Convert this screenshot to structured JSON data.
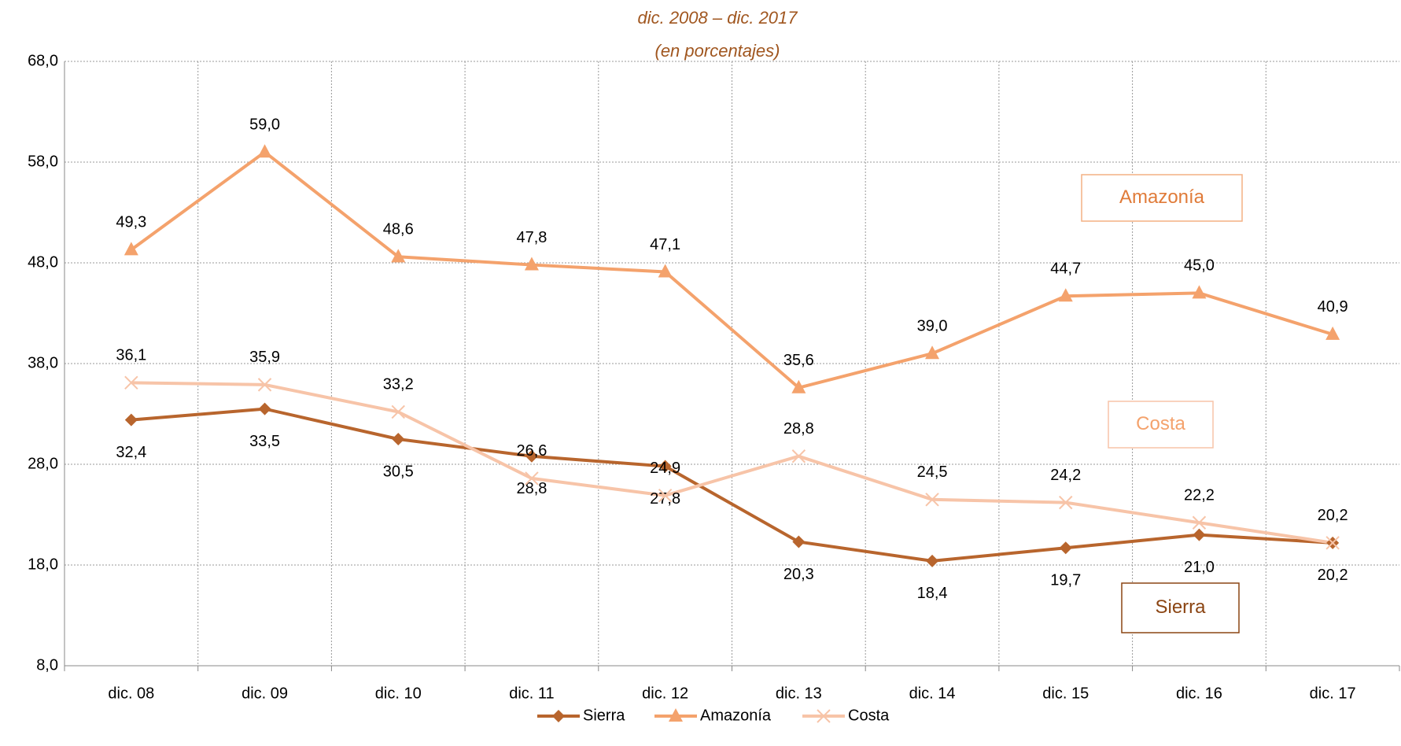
{
  "chart_data": {
    "type": "line",
    "title": "dic. 2008 – dic. 2017",
    "subtitle": "(en porcentajes)",
    "categories": [
      "dic. 08",
      "dic. 09",
      "dic. 10",
      "dic. 11",
      "dic. 12",
      "dic. 13",
      "dic. 14",
      "dic. 15",
      "dic. 16",
      "dic. 17"
    ],
    "series": [
      {
        "name": "Sierra",
        "color": "#b8652d",
        "marker": "diamond",
        "values": [
          32.4,
          33.5,
          30.5,
          28.8,
          27.8,
          20.3,
          18.4,
          19.7,
          21.0,
          20.2
        ],
        "value_labels": [
          "32,4",
          "33,5",
          "30,5",
          "28,8",
          "27,8",
          "20,3",
          "18,4",
          "19,7",
          "21,0",
          "20,2"
        ]
      },
      {
        "name": "Amazonía",
        "color": "#f4a26c",
        "marker": "triangle",
        "values": [
          49.3,
          59.0,
          48.6,
          47.8,
          47.1,
          35.6,
          39.0,
          44.7,
          45.0,
          40.9
        ],
        "value_labels": [
          "49,3",
          "59,0",
          "48,6",
          "47,8",
          "47,1",
          "35,6",
          "39,0",
          "44,7",
          "45,0",
          "40,9"
        ]
      },
      {
        "name": "Costa",
        "color": "#f7c4a8",
        "marker": "x",
        "values": [
          36.1,
          35.9,
          33.2,
          26.6,
          24.9,
          28.8,
          24.5,
          24.2,
          22.2,
          20.2
        ],
        "value_labels": [
          "36,1",
          "35,9",
          "33,2",
          "26,6",
          "24,9",
          "28,8",
          "24,5",
          "24,2",
          "22,2",
          "20,2"
        ]
      }
    ],
    "annotations": [
      "Amazonía",
      "Costa",
      "Sierra"
    ],
    "ylim": [
      8,
      68
    ],
    "yticks": [
      {
        "value": 8,
        "label": "8,0"
      },
      {
        "value": 18,
        "label": "18,0"
      },
      {
        "value": 28,
        "label": "28,0"
      },
      {
        "value": 38,
        "label": "38,0"
      },
      {
        "value": 48,
        "label": "48,0"
      },
      {
        "value": 58,
        "label": "58,0"
      },
      {
        "value": 68,
        "label": "68,0"
      }
    ],
    "grid": true,
    "legend": "bottom"
  }
}
